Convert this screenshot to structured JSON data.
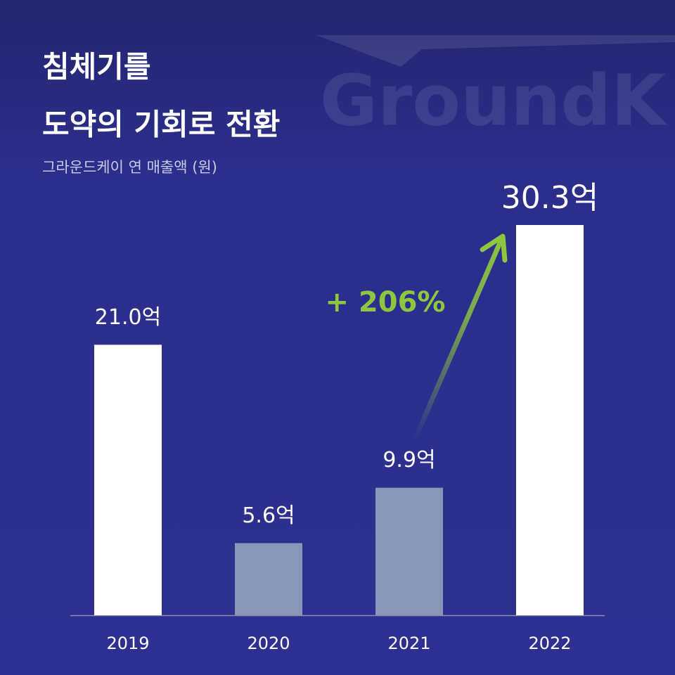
{
  "chart_data": {
    "type": "bar",
    "title_lines": [
      "침체기를",
      "도약의 기회로 전환"
    ],
    "subtitle": "그라운드케이 연 매출액 (원)",
    "watermark": "GroundK",
    "annotation": "+ 206%",
    "categories": [
      "2019",
      "2020",
      "2021",
      "2022"
    ],
    "values": [
      21.0,
      5.6,
      9.9,
      30.3
    ],
    "value_labels": [
      "21.0억",
      "5.6억",
      "9.9억",
      "30.3억"
    ],
    "colors": [
      "#ffffff",
      "#8a96b8",
      "#8a96b8",
      "#ffffff"
    ],
    "ylim": [
      0,
      30.3
    ]
  }
}
